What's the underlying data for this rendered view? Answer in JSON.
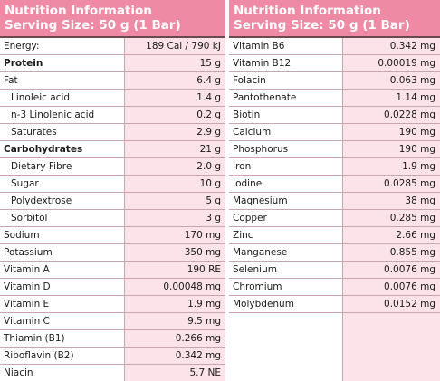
{
  "left": {
    "title": "Nutrition Information",
    "serving": "Serving Size: 50 g (1 Bar)",
    "rows": [
      {
        "name": "Energy:",
        "value": "189 Cal / 790 kJ",
        "style": ""
      },
      {
        "name": "Protein",
        "value": "15 g",
        "style": "bold"
      },
      {
        "name": "Fat",
        "value": "6.4 g",
        "style": ""
      },
      {
        "name": "Linoleic acid",
        "value": "1.4 g",
        "style": "sub"
      },
      {
        "name": "n-3 Linolenic acid",
        "value": "0.2 g",
        "style": "sub"
      },
      {
        "name": "Saturates",
        "value": "2.9 g",
        "style": "sub"
      },
      {
        "name": "Carbohydrates",
        "value": "21 g",
        "style": "bold"
      },
      {
        "name": "Dietary Fibre",
        "value": "2.0 g",
        "style": "sub"
      },
      {
        "name": "Sugar",
        "value": "10 g",
        "style": "sub"
      },
      {
        "name": "Polydextrose",
        "value": "5 g",
        "style": "sub"
      },
      {
        "name": "Sorbitol",
        "value": "3 g",
        "style": "sub"
      },
      {
        "name": "Sodium",
        "value": "170 mg",
        "style": ""
      },
      {
        "name": "Potassium",
        "value": "350 mg",
        "style": ""
      },
      {
        "name": "Vitamin A",
        "value": "190 RE",
        "style": ""
      },
      {
        "name": "Vitamin D",
        "value": "0.00048 mg",
        "style": ""
      },
      {
        "name": "Vitamin E",
        "value": "1.9 mg",
        "style": ""
      },
      {
        "name": "Vitamin C",
        "value": "9.5 mg",
        "style": ""
      },
      {
        "name": "Thiamin (B1)",
        "value": "0.266 mg",
        "style": ""
      },
      {
        "name": "Riboflavin (B2)",
        "value": "0.342 mg",
        "style": ""
      },
      {
        "name": "Niacin",
        "value": "5.7 NE",
        "style": ""
      }
    ]
  },
  "right": {
    "title": "Nutrition Information",
    "serving": "Serving Size: 50 g (1 Bar)",
    "rows": [
      {
        "name": "Vitamin B6",
        "value": "0.342 mg",
        "style": ""
      },
      {
        "name": "Vitamin B12",
        "value": "0.00019 mg",
        "style": ""
      },
      {
        "name": "Folacin",
        "value": "0.063 mg",
        "style": ""
      },
      {
        "name": "Pantothenate",
        "value": "1.14 mg",
        "style": ""
      },
      {
        "name": "Biotin",
        "value": "0.0228 mg",
        "style": ""
      },
      {
        "name": "Calcium",
        "value": "190 mg",
        "style": ""
      },
      {
        "name": "Phosphorus",
        "value": "190 mg",
        "style": ""
      },
      {
        "name": "Iron",
        "value": "1.9 mg",
        "style": ""
      },
      {
        "name": "Iodine",
        "value": "0.0285 mg",
        "style": ""
      },
      {
        "name": "Magnesium",
        "value": "38 mg",
        "style": ""
      },
      {
        "name": "Copper",
        "value": "0.285 mg",
        "style": ""
      },
      {
        "name": "Zinc",
        "value": "2.66 mg",
        "style": ""
      },
      {
        "name": "Manganese",
        "value": "0.855 mg",
        "style": ""
      },
      {
        "name": "Selenium",
        "value": "0.0076 mg",
        "style": ""
      },
      {
        "name": "Chromium",
        "value": "0.0076 mg",
        "style": ""
      },
      {
        "name": "Molybdenum",
        "value": "0.0152 mg",
        "style": ""
      }
    ]
  },
  "colors": {
    "header_bg": "#ee8aa3",
    "value_bg": "#fbe3e9",
    "border": "#c9a6ad"
  }
}
